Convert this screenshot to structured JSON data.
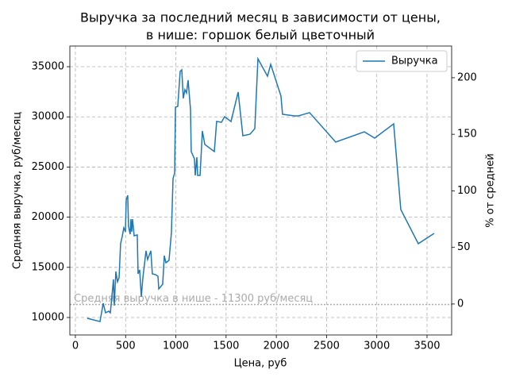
{
  "chart_data": {
    "type": "line",
    "title": [
      "Выручка за последний месяц в зависимости от цены,",
      "в нише: горшок белый цветочный"
    ],
    "xlabel": "Цена, руб",
    "ylabel": "Средняя выручка, руб/месяц",
    "y2label": "% от средней",
    "x": [
      118,
      245,
      277,
      300,
      332,
      348,
      363,
      379,
      387,
      403,
      419,
      435,
      450,
      466,
      482,
      498,
      506,
      521,
      529,
      545,
      553,
      561,
      569,
      585,
      616,
      624,
      640,
      656,
      672,
      703,
      719,
      751,
      766,
      798,
      822,
      830,
      869,
      885,
      901,
      932,
      956,
      972,
      988,
      996,
      1019,
      1043,
      1059,
      1074,
      1090,
      1106,
      1122,
      1146,
      1153,
      1185,
      1193,
      1209,
      1217,
      1241,
      1264,
      1288,
      1383,
      1406,
      1454,
      1485,
      1549,
      1620,
      1667,
      1738,
      1786,
      1817,
      1912,
      1944,
      2046,
      2062,
      2181,
      2220,
      2331,
      2591,
      2876,
      2979,
      3168,
      3239,
      3413,
      3571
    ],
    "series": [
      {
        "name": "Выручка",
        "color": "#1f77b4",
        "values": [
          9920,
          9600,
          11420,
          10470,
          10630,
          10470,
          12060,
          13800,
          11190,
          14590,
          13560,
          13960,
          17360,
          18070,
          18940,
          18540,
          21710,
          22180,
          19100,
          18300,
          19810,
          18540,
          19810,
          18150,
          18230,
          14350,
          14750,
          12060,
          13960,
          16650,
          15780,
          16650,
          14350,
          14270,
          14110,
          12850,
          13320,
          16170,
          15460,
          15700,
          18470,
          23850,
          24400,
          30970,
          31040,
          34530,
          34690,
          31840,
          32710,
          32390,
          33660,
          30730,
          26540,
          25820,
          24160,
          25980,
          24160,
          24160,
          28590,
          27250,
          26540,
          29540,
          29460,
          30020,
          29540,
          32470,
          28120,
          28270,
          28830,
          35790,
          34050,
          35240,
          32080,
          30260,
          30100,
          30100,
          30420,
          27490,
          28510,
          27880,
          29300,
          20760,
          17360,
          18390
        ]
      }
    ],
    "hline": 11300,
    "hline_color": "#aaaaaa",
    "annotation": "Средняя выручка в нише - 11300 руб/месяц",
    "xlim": [
      -55,
      3745
    ],
    "xticks": [
      0,
      500,
      1000,
      1500,
      2000,
      2500,
      3000,
      3500
    ],
    "ylim": [
      8260,
      37060
    ],
    "yticks": [
      10000,
      15000,
      20000,
      25000,
      30000,
      35000
    ],
    "y2lim": [
      -27.4,
      228
    ],
    "y2ticks": [
      0,
      50,
      100,
      150,
      200
    ],
    "grid": true,
    "legend": "upper right"
  }
}
